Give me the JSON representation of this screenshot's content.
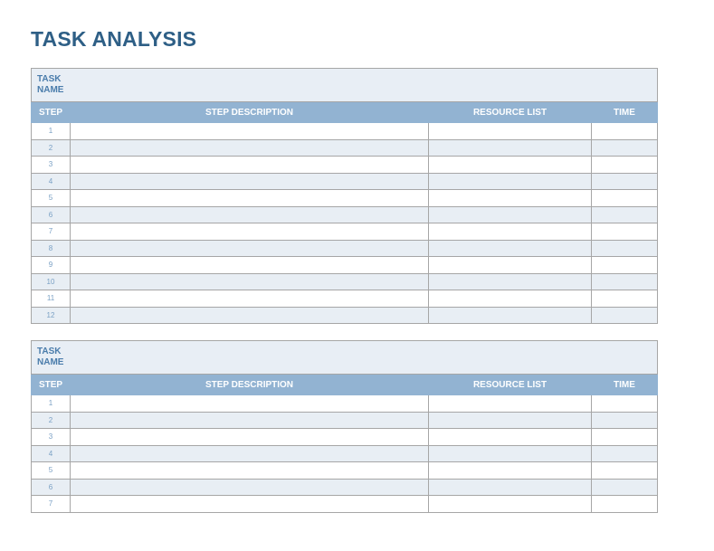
{
  "title": "TASK ANALYSIS",
  "tables": [
    {
      "task_name_label": "TASK NAME",
      "headers": [
        "STEP",
        "STEP DESCRIPTION",
        "RESOURCE LIST",
        "TIME"
      ],
      "steps": [
        "1",
        "2",
        "3",
        "4",
        "5",
        "6",
        "7",
        "8",
        "9",
        "10",
        "11",
        "12"
      ]
    },
    {
      "task_name_label": "TASK NAME",
      "headers": [
        "STEP",
        "STEP DESCRIPTION",
        "RESOURCE LIST",
        "TIME"
      ],
      "steps": [
        "1",
        "2",
        "3",
        "4",
        "5",
        "6",
        "7"
      ]
    }
  ],
  "colors": {
    "title": "#2e5f86",
    "header_bg": "#92b3d2",
    "task_name_bg": "#e8eef5",
    "alt_row_bg": "#e8eef4"
  }
}
